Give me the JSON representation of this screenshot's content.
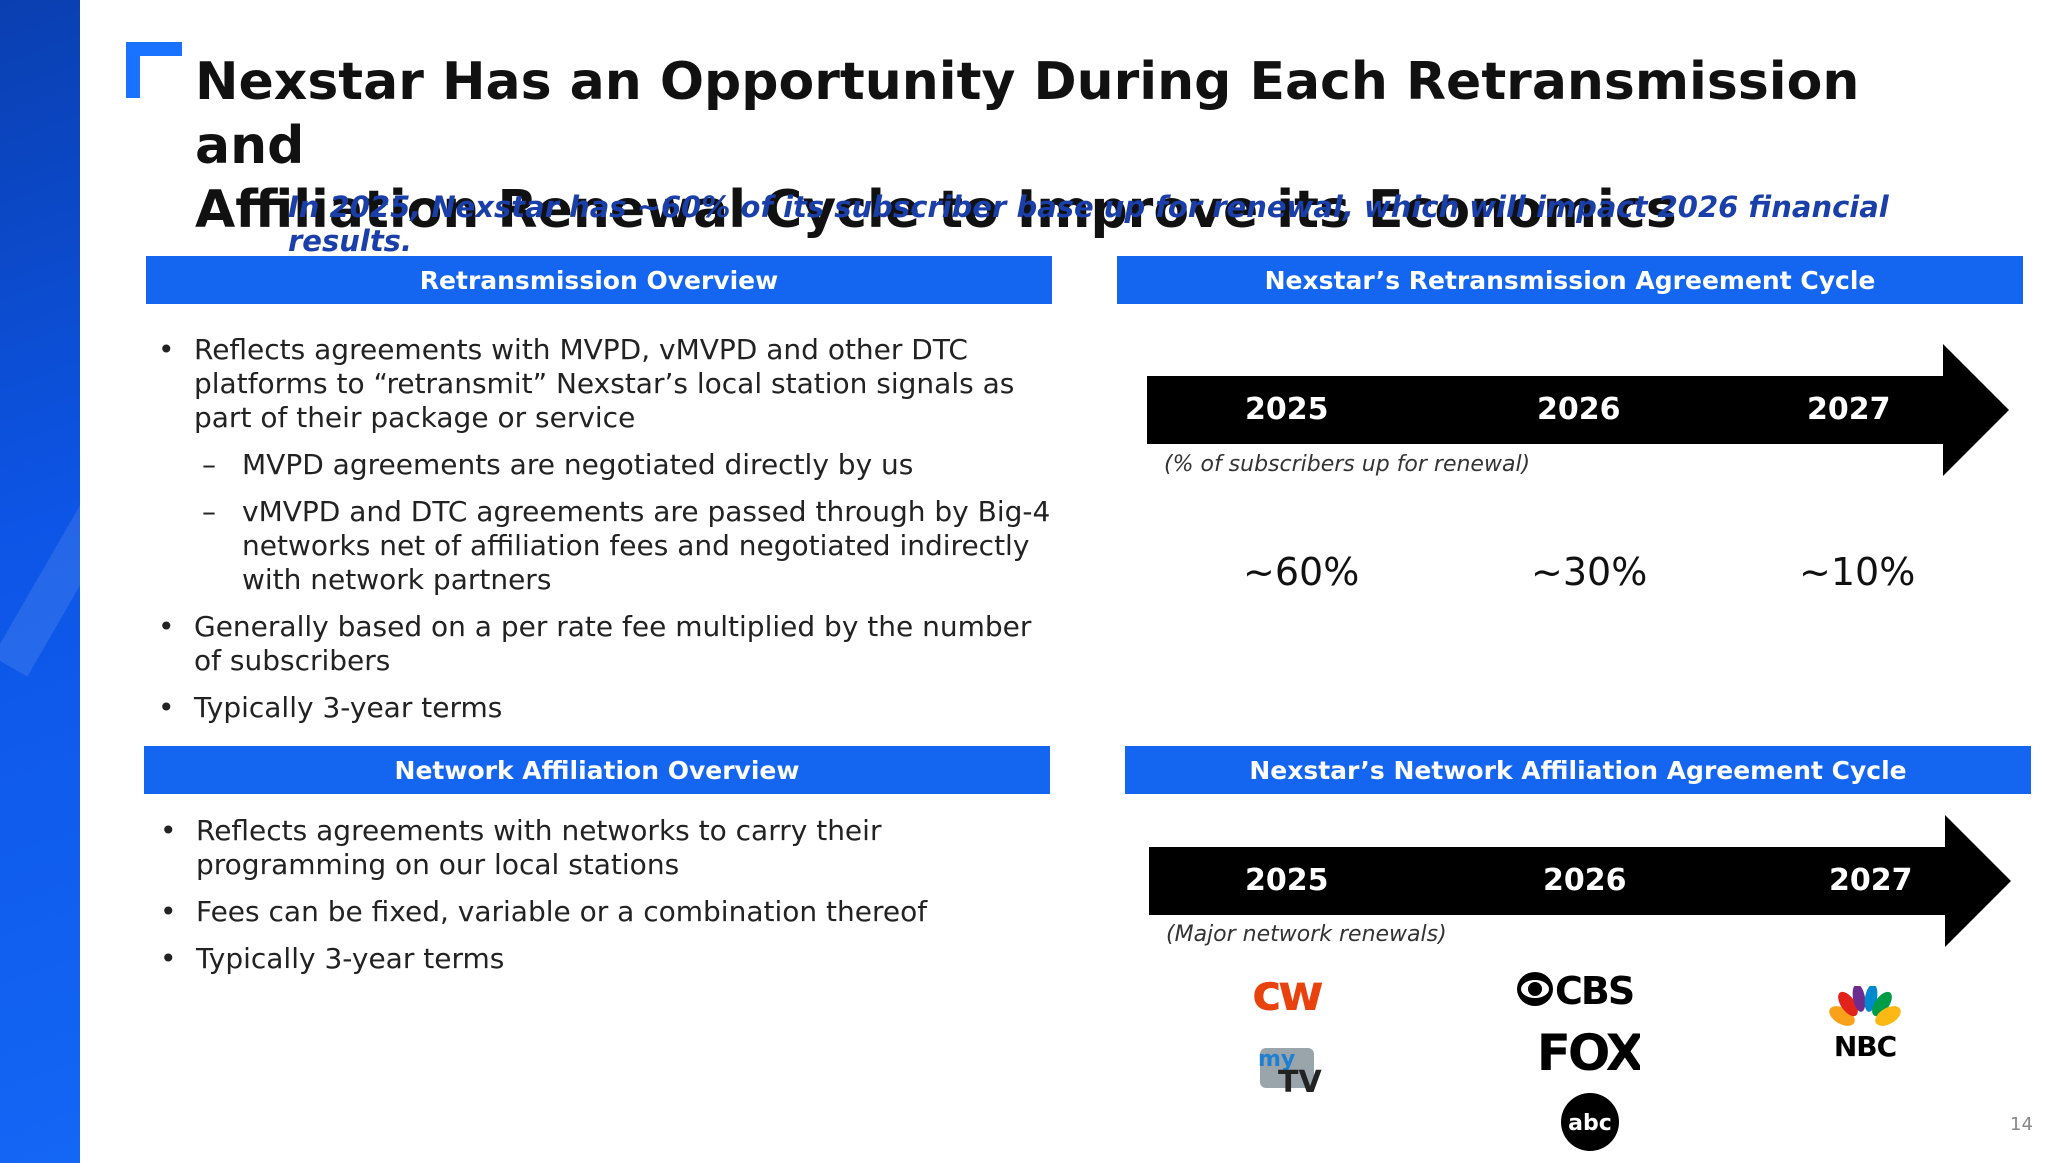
{
  "title_lines": [
    "Nexstar Has an Opportunity During Each Retransmission and",
    "Affiliation Renewal Cycle to Improve its Economics"
  ],
  "subtitle": "In 2025, Nexstar has ~60% of its subscriber base up for renewal, which will impact 2026 financial results.",
  "retrans_overview": {
    "header": "Retransmission Overview",
    "bullets": [
      "Reflects agreements with MVPD, vMVPD and other DTC platforms to “retransmit” Nexstar’s local station signals as part of their package or service",
      "MVPD agreements are negotiated directly by us",
      "vMVPD and DTC agreements are passed through by Big-4 networks net of affiliation fees and negotiated indirectly with network partners",
      "Generally based on a per rate fee multiplied by the number of subscribers",
      "Typically 3-year terms"
    ]
  },
  "affil_overview": {
    "header": "Network Affiliation Overview",
    "bullets": [
      "Reflects agreements with networks to carry their programming on our local stations",
      "Fees can be fixed, variable or a combination thereof",
      "Typically 3-year terms"
    ]
  },
  "retrans_cycle": {
    "header": "Nexstar’s Retransmission Agreement Cycle",
    "years": [
      "2025",
      "2026",
      "2027"
    ],
    "note": "(% of subscribers up for renewal)",
    "percents": [
      "~60%",
      "~30%",
      "~10%"
    ]
  },
  "affil_cycle": {
    "header": "Nexstar’s Network Affiliation Agreement Cycle",
    "years": [
      "2025",
      "2026",
      "2027"
    ],
    "note": "(Major network renewals)",
    "logos": {
      "cw": "cw",
      "mytv_my": "my",
      "mytv_tv": "TV",
      "cbs": "CBS",
      "fox": "FOX",
      "abc": "abc",
      "nbc": "NBC"
    }
  },
  "page_number": "14",
  "colors": {
    "accent": "#1466f0",
    "subtitle": "#1a3fa8",
    "cw_red": "#e8420e"
  }
}
